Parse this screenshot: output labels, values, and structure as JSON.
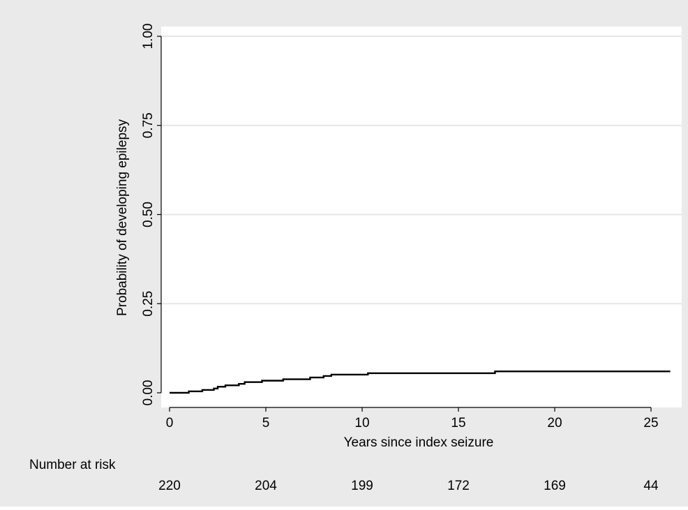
{
  "chart_data": {
    "type": "line",
    "title": "",
    "xlabel": "Years since index seizure",
    "ylabel": "Probability of developing epilepsy",
    "xlim": [
      0,
      26
    ],
    "ylim": [
      0,
      1
    ],
    "x_ticks": [
      0,
      5,
      10,
      15,
      20,
      25
    ],
    "x_tick_labels": [
      "0",
      "5",
      "10",
      "15",
      "20",
      "25"
    ],
    "y_ticks": [
      0,
      0.25,
      0.5,
      0.75,
      1
    ],
    "y_tick_labels": [
      "0.00",
      "0.25",
      "0.50",
      "0.75",
      "1.00"
    ],
    "grid": "horizontal",
    "legend": "none",
    "series": [
      {
        "step": true,
        "color": "#000000",
        "x": [
          0,
          1.0,
          1.7,
          2.3,
          2.5,
          2.9,
          3.6,
          3.9,
          4.8,
          5.9,
          7.3,
          8.0,
          8.4,
          10.3,
          16.9,
          26.0
        ],
        "y": [
          0.0,
          0.004,
          0.008,
          0.012,
          0.017,
          0.021,
          0.025,
          0.03,
          0.034,
          0.038,
          0.043,
          0.047,
          0.051,
          0.055,
          0.06,
          0.06
        ]
      }
    ],
    "risk_table": {
      "label": "Number at risk",
      "times": [
        0,
        5,
        10,
        15,
        20,
        25
      ],
      "counts": [
        "220",
        "204",
        "199",
        "172",
        "169",
        "44"
      ]
    }
  },
  "colors": {
    "outer_background": "#eaeaea",
    "plot_background": "#ffffff",
    "grid": "#e6e6e6",
    "axis": "#000000",
    "line": "#000000"
  }
}
